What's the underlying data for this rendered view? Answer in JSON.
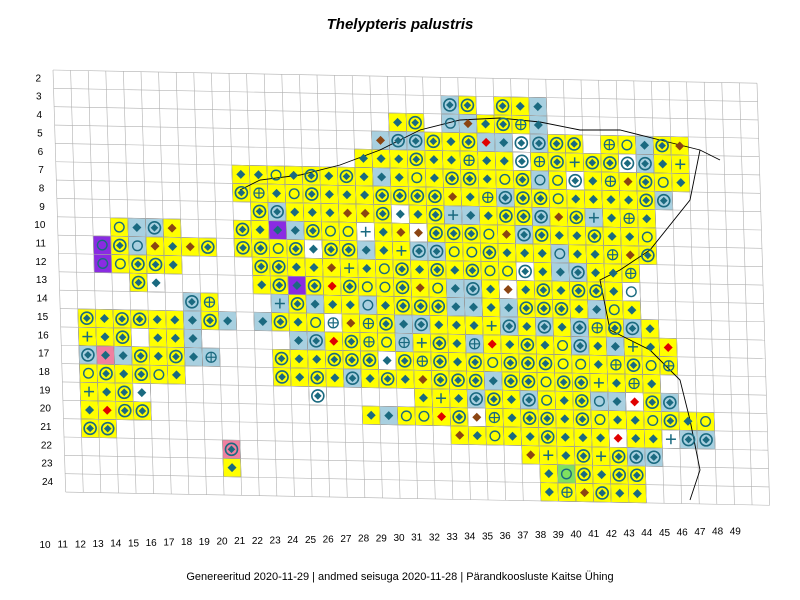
{
  "title": "Thelypteris palustris",
  "footer": "Genereeritud 2020-11-29  |  andmed seisuga 2020-11-28  |  Pärandkoosluste Kaitse Ühing",
  "y_labels": [
    "2",
    "3",
    "4",
    "5",
    "6",
    "7",
    "8",
    "9",
    "10",
    "11",
    "12",
    "13",
    "14",
    "15",
    "16",
    "17",
    "18",
    "19",
    "20",
    "21",
    "22",
    "23",
    "24"
  ],
  "x_labels": [
    "10",
    "11",
    "12",
    "13",
    "14",
    "15",
    "16",
    "17",
    "18",
    "19",
    "20",
    "21",
    "22",
    "23",
    "24",
    "25",
    "26",
    "27",
    "28",
    "29",
    "30",
    "31",
    "32",
    "33",
    "34",
    "35",
    "36",
    "37",
    "38",
    "39",
    "40",
    "41",
    "42",
    "43",
    "44",
    "45",
    "46",
    "47",
    "48",
    "49"
  ],
  "colors": {
    "grid": "#b0b0b0",
    "cell_yellow": "#ffff00",
    "cell_blue": "#a8d0e0",
    "cell_purple": "#8a2be2",
    "cell_pink": "#f080a0",
    "cell_green": "#80e060",
    "symbol_teal": "#1a6a80",
    "symbol_red": "#e00000",
    "symbol_brown": "#8b4513",
    "coast": "#000000"
  },
  "legend_symbols": [
    "filled-diamond",
    "circled-diamond",
    "open-circle",
    "circle-cross",
    "plus"
  ]
}
